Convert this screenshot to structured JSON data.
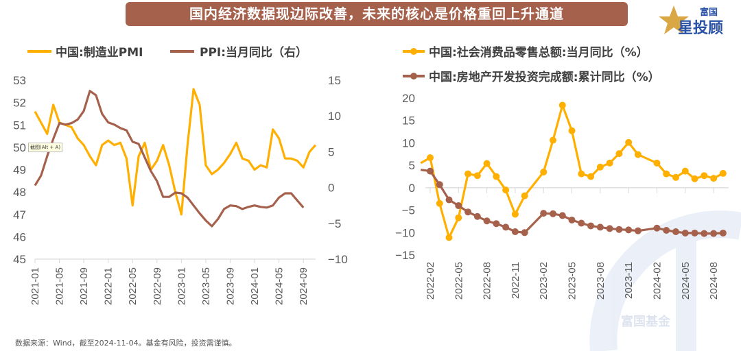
{
  "banner": {
    "title": "国内经济数据现边际改善，未来的核心是价格重回上升通道"
  },
  "logo": {
    "top": "富国",
    "bottom": "星投顾",
    "watermark": "富国基金"
  },
  "footer": "数据来源：Wind，截至2024-11-04。基金有风险，投资需谨慎。",
  "tooltip": "截图(Alt + A)",
  "colors": {
    "yellow": "#FFAF00",
    "brown": "#A5614B",
    "banner": "#A5614B"
  },
  "chart_data": [
    {
      "type": "line",
      "title": "",
      "x_start": "2021-01",
      "xtick_labels": [
        "2021-01",
        "2021-05",
        "2021-09",
        "2022-01",
        "2022-05",
        "2022-09",
        "2023-01",
        "2023-05",
        "2023-09",
        "2024-01",
        "2024-05",
        "2024-09"
      ],
      "ylim": [
        45,
        53
      ],
      "yticks": [
        "53",
        "52",
        "51",
        "50",
        "49",
        "48",
        "47",
        "46",
        "45"
      ],
      "y2lim": [
        -10,
        15
      ],
      "y2ticks": [
        "15",
        "10",
        "5",
        "0",
        "-5",
        "-10"
      ],
      "legend_position": "top",
      "series": [
        {
          "name": "中国:制造业PMI",
          "axis": "left",
          "color": "#FFAF00",
          "values": [
            51.6,
            51.1,
            50.6,
            51.9,
            51.1,
            51.0,
            50.9,
            50.4,
            50.1,
            49.6,
            49.2,
            50.1,
            50.3,
            50.1,
            50.2,
            49.5,
            47.4,
            49.6,
            50.2,
            49.0,
            49.4,
            50.1,
            49.2,
            48.0,
            47.0,
            50.1,
            52.6,
            51.9,
            49.2,
            48.8,
            49.0,
            49.3,
            49.7,
            50.2,
            49.5,
            49.4,
            49.0,
            49.2,
            49.1,
            50.8,
            50.4,
            49.5,
            49.5,
            49.4,
            49.1,
            49.8,
            50.1
          ]
        },
        {
          "name": "PPI:当月同比（右）",
          "axis": "right",
          "color": "#A5614B",
          "values": [
            0.3,
            1.7,
            4.4,
            6.8,
            9.0,
            8.8,
            9.0,
            9.5,
            10.7,
            13.5,
            12.9,
            10.3,
            9.1,
            8.8,
            8.3,
            8.0,
            6.4,
            6.1,
            4.2,
            2.3,
            0.9,
            -1.3,
            -1.3,
            -0.7,
            -0.8,
            -1.4,
            -2.5,
            -3.6,
            -4.6,
            -5.4,
            -4.4,
            -3.0,
            -2.5,
            -2.6,
            -3.0,
            -2.7,
            -2.5,
            -2.7,
            -2.8,
            -2.5,
            -1.4,
            -0.8,
            -0.8,
            -1.8,
            -2.8
          ]
        }
      ]
    },
    {
      "type": "line",
      "title": "",
      "x_start": "2022-01",
      "xtick_labels": [
        "2022-02",
        "2022-05",
        "2022-08",
        "2022-11",
        "2023-02",
        "2023-05",
        "2023-08",
        "2023-11",
        "2024-02",
        "2024-05",
        "2024-08"
      ],
      "ylim": [
        -15,
        20
      ],
      "yticks": [
        "20",
        "15",
        "10",
        "5",
        "0",
        "-5",
        "-10",
        "-15"
      ],
      "legend_position": "top",
      "series": [
        {
          "name": "中国:社会消费品零售总额:当月同比（%）",
          "color": "#FFAF00",
          "values": [
            5.5,
            6.7,
            -3.5,
            -11.1,
            -6.7,
            3.1,
            2.7,
            5.4,
            2.5,
            -0.5,
            -5.9,
            -1.8,
            null,
            3.5,
            10.6,
            18.4,
            12.7,
            3.1,
            2.5,
            4.6,
            5.5,
            7.6,
            10.1,
            7.4,
            null,
            5.5,
            3.1,
            2.3,
            3.7,
            2.0,
            2.7,
            2.1,
            3.2
          ]
        },
        {
          "name": "中国:房地产开发投资完成额:累计同比（%）",
          "color": "#A5614B",
          "values": [
            4.0,
            3.7,
            0.7,
            -2.7,
            -4.0,
            -5.4,
            -6.4,
            -7.4,
            -8.0,
            -8.8,
            -9.8,
            -10.0,
            null,
            -5.7,
            -5.8,
            -6.2,
            -7.2,
            -7.9,
            -8.5,
            -8.8,
            -9.1,
            -9.3,
            -9.4,
            -9.6,
            null,
            -9.0,
            -9.5,
            -9.8,
            -10.1,
            -10.1,
            -10.2,
            -10.2,
            -10.1
          ]
        }
      ]
    }
  ]
}
